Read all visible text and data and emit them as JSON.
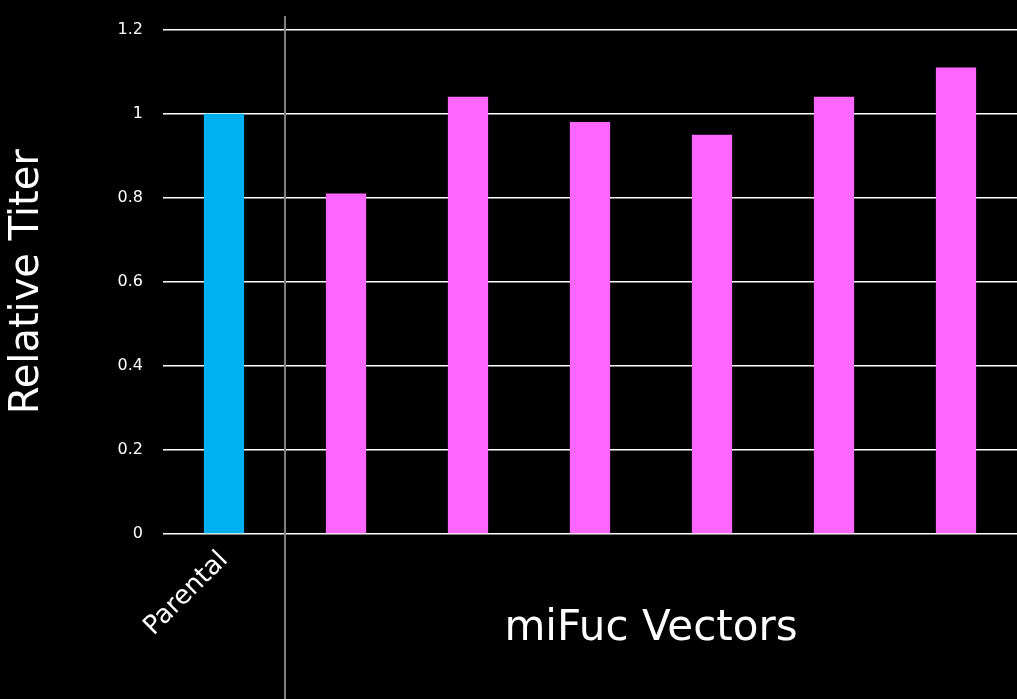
{
  "chart_data": {
    "type": "bar",
    "categories": [
      "Parental",
      null,
      null,
      null,
      null,
      null,
      null
    ],
    "values": [
      1.0,
      0.81,
      1.04,
      0.98,
      0.95,
      1.04,
      1.11
    ],
    "colors": [
      "#00b0f0",
      "#ff66ff",
      "#ff66ff",
      "#ff66ff",
      "#ff66ff",
      "#ff66ff",
      "#ff66ff"
    ],
    "xlabel": "miFuc Vectors",
    "ylabel": "Relative Titer",
    "ylim": [
      0,
      1.2
    ],
    "yticks": [
      0,
      0.2,
      0.4,
      0.6,
      0.8,
      1,
      1.2
    ],
    "grid": "y",
    "legend": false
  }
}
